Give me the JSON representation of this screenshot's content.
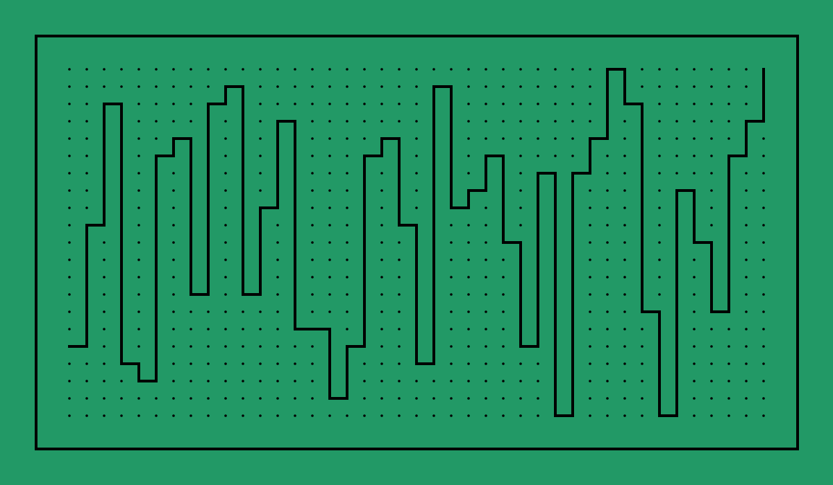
{
  "colors": {
    "background": "#229966",
    "border": "#000000",
    "dot": "#000000",
    "path": "#000000"
  },
  "grid": {
    "columns": 41,
    "rows": 21
  },
  "path": {
    "points": [
      [
        0,
        16
      ],
      [
        1,
        16
      ],
      [
        1,
        9
      ],
      [
        2,
        9
      ],
      [
        2,
        2
      ],
      [
        3,
        2
      ],
      [
        3,
        17
      ],
      [
        4,
        17
      ],
      [
        4,
        18
      ],
      [
        5,
        18
      ],
      [
        5,
        5
      ],
      [
        6,
        5
      ],
      [
        6,
        4
      ],
      [
        7,
        4
      ],
      [
        7,
        13
      ],
      [
        8,
        13
      ],
      [
        8,
        2
      ],
      [
        9,
        2
      ],
      [
        9,
        1
      ],
      [
        10,
        1
      ],
      [
        10,
        13
      ],
      [
        11,
        13
      ],
      [
        11,
        8
      ],
      [
        12,
        8
      ],
      [
        12,
        3
      ],
      [
        13,
        3
      ],
      [
        13,
        15
      ],
      [
        14,
        15
      ],
      [
        15,
        15
      ],
      [
        15,
        19
      ],
      [
        16,
        19
      ],
      [
        16,
        16
      ],
      [
        17,
        16
      ],
      [
        17,
        5
      ],
      [
        18,
        5
      ],
      [
        18,
        4
      ],
      [
        19,
        4
      ],
      [
        19,
        9
      ],
      [
        20,
        9
      ],
      [
        20,
        17
      ],
      [
        21,
        17
      ],
      [
        21,
        1
      ],
      [
        22,
        1
      ],
      [
        22,
        8
      ],
      [
        23,
        8
      ],
      [
        23,
        7
      ],
      [
        24,
        7
      ],
      [
        24,
        5
      ],
      [
        25,
        5
      ],
      [
        25,
        10
      ],
      [
        26,
        10
      ],
      [
        26,
        16
      ],
      [
        27,
        16
      ],
      [
        27,
        6
      ],
      [
        28,
        6
      ],
      [
        28,
        20
      ],
      [
        29,
        20
      ],
      [
        29,
        6
      ],
      [
        30,
        6
      ],
      [
        30,
        4
      ],
      [
        31,
        4
      ],
      [
        31,
        0
      ],
      [
        32,
        0
      ],
      [
        32,
        2
      ],
      [
        33,
        2
      ],
      [
        33,
        14
      ],
      [
        34,
        14
      ],
      [
        34,
        20
      ],
      [
        35,
        20
      ],
      [
        35,
        7
      ],
      [
        36,
        7
      ],
      [
        36,
        10
      ],
      [
        37,
        10
      ],
      [
        37,
        14
      ],
      [
        38,
        14
      ],
      [
        38,
        5
      ],
      [
        39,
        5
      ],
      [
        39,
        3
      ],
      [
        40,
        3
      ],
      [
        40,
        0
      ]
    ]
  }
}
